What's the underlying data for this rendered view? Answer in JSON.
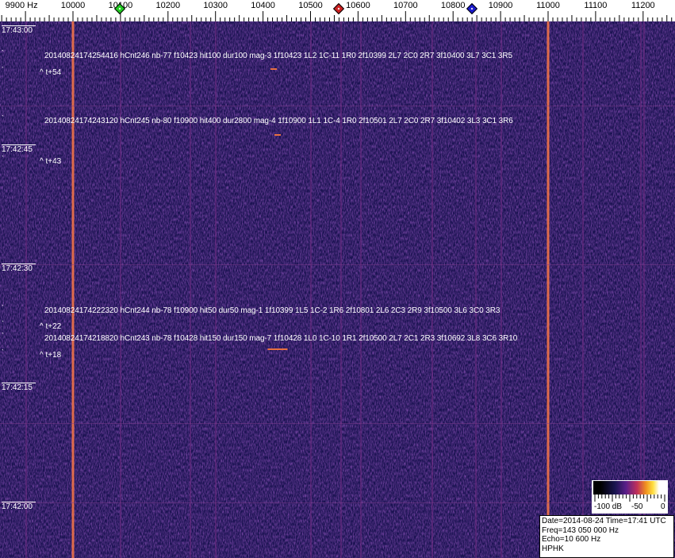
{
  "frequency_scale": {
    "labels": [
      {
        "text": "9900 Hz",
        "hz": 9900
      },
      {
        "text": "10000",
        "hz": 10000
      },
      {
        "text": "10100",
        "hz": 10100
      },
      {
        "text": "10200",
        "hz": 10200
      },
      {
        "text": "10300",
        "hz": 10300
      },
      {
        "text": "10400",
        "hz": 10400
      },
      {
        "text": "10500",
        "hz": 10500
      },
      {
        "text": "10600",
        "hz": 10600
      },
      {
        "text": "10700",
        "hz": 10700
      },
      {
        "text": "10800",
        "hz": 10800
      },
      {
        "text": "10900",
        "hz": 10900
      },
      {
        "text": "11000",
        "hz": 11000
      },
      {
        "text": "11100",
        "hz": 11100
      },
      {
        "text": "11200",
        "hz": 11200
      }
    ],
    "markers": [
      {
        "name": "green",
        "color": "#22cc22",
        "hz": 10098
      },
      {
        "name": "red",
        "color": "#cc2222",
        "hz": 10560
      },
      {
        "name": "blue",
        "color": "#1a1acc",
        "hz": 10840
      }
    ]
  },
  "time_labels": [
    "17:43:00",
    "17:42:45",
    "17:42:30",
    "17:42:15",
    "17:42:00"
  ],
  "detections": [
    {
      "text": "20140824174254416 hCnt246 nb-77 f10423 hit100 dur100 mag-3 1f10423 1L2 1C-11 1R0 2f10399 2L7 2C0 2R7 3f10400 3L7 3C1 3R5",
      "offset": "^ t+54"
    },
    {
      "text": "20140824174243120 hCnt245 nb-80 f10900 hit400 dur2800 mag-4 1f10900 1L1 1C-4 1R0 2f10501 2L7 2C0 2R7 3f10402 3L3 3C1 3R6",
      "offset": "^ t+43"
    },
    {
      "text": "20140824174222320 hCnt244 nb-78 f10900 hit50 dur50 mag-1 1f10399 1L5 1C-2 1R6 2f10801 2L6 2C3 2R9 3f10500 3L6 3C0 3R3",
      "offset": "^ t+22"
    },
    {
      "text": "20140824174218820 hCnt243 nb-78 f10428 hit150 dur150 mag-7 1f10428 1L0 1C-10 1R1 2f10500 2L7 2C1 2R3 3f10692 3L8 3C6 3R10",
      "offset": "^ t+18"
    }
  ],
  "colorbar": {
    "labels": [
      "-100 dB",
      "-50",
      "0"
    ]
  },
  "info": {
    "date_time": "Date=2014-08-24 Time=17:41 UTC",
    "freq": "Freq=143 050 000 Hz",
    "echo": "Echo=10 600 Hz",
    "station": "HPHK"
  },
  "colors": {
    "background": "#1b1352",
    "carrier": "#e8704a",
    "spur": "#6a2a80"
  }
}
